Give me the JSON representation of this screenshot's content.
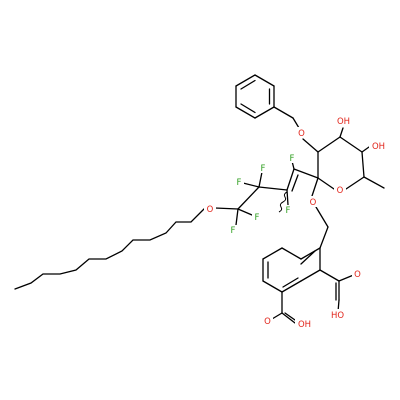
{
  "atom_labels": {
    "O": "O",
    "F": "F",
    "OH": "OH",
    "HO": "HO"
  },
  "colors": {
    "bond": "#000000",
    "oxygen": "#e1251b",
    "fluorine": "#2f9e20",
    "background": "#ffffff"
  }
}
